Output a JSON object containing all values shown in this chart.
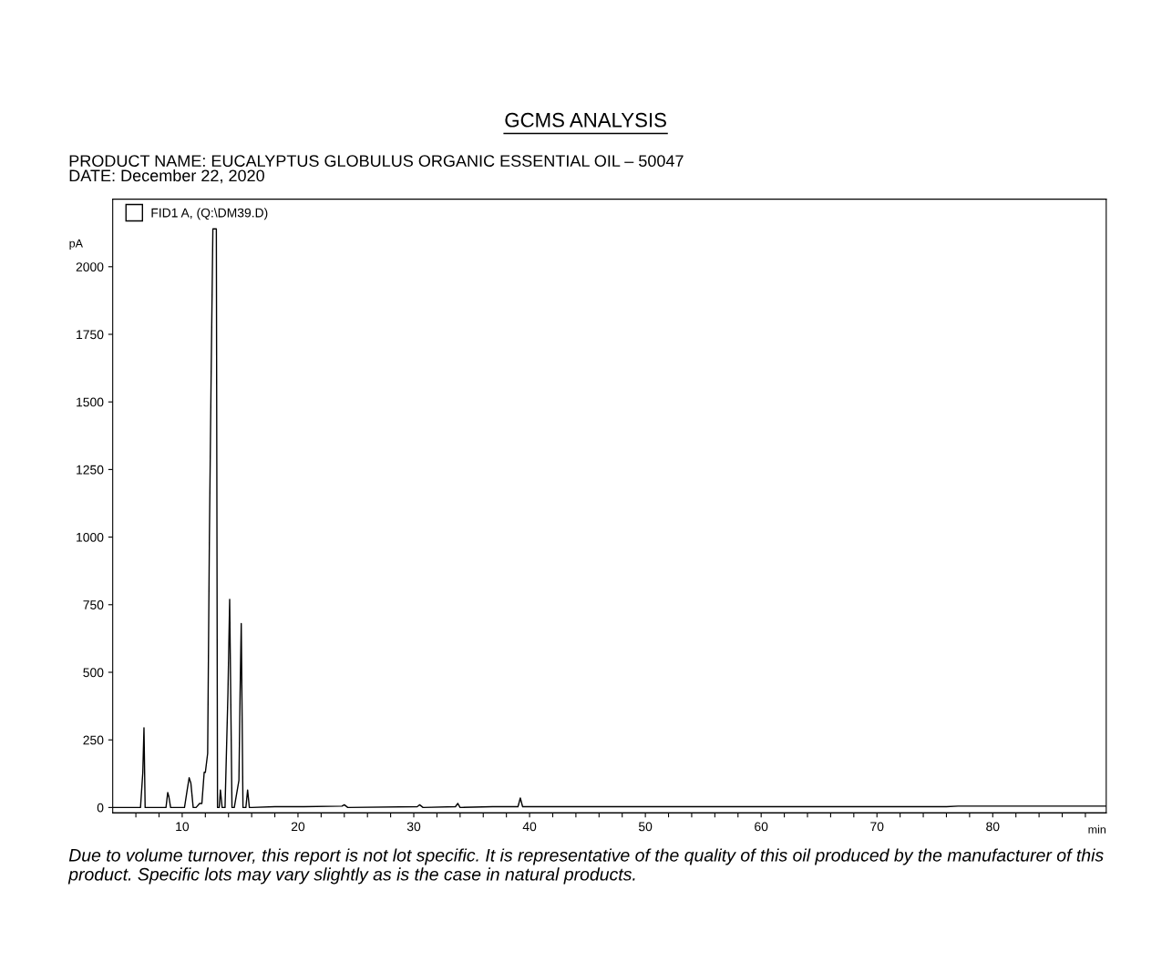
{
  "chart_data": {
    "type": "line",
    "title": "GCMS ANALYSIS",
    "subtitle": "PRODUCT NAME: EUCALYPTUS GLOBULUS ORGANIC ESSENTIAL OIL – 50047\nDATE: December 22, 2020",
    "xlabel": "min",
    "ylabel": "pA",
    "series": [
      {
        "name": "FID1 A, (Q:\\DM39.D)",
        "color": "#000000",
        "x": [
          4.0,
          6.4,
          6.6,
          6.7,
          6.8,
          7.0,
          8.6,
          8.75,
          8.85,
          9.0,
          10.2,
          10.45,
          10.6,
          10.75,
          10.95,
          11.2,
          11.5,
          11.7,
          11.9,
          12.0,
          12.2,
          12.35,
          12.5,
          12.65,
          12.8,
          12.95,
          13.05,
          13.2,
          13.3,
          13.45,
          13.7,
          13.95,
          14.1,
          14.3,
          14.5,
          14.9,
          15.0,
          15.1,
          15.25,
          15.5,
          15.65,
          15.8,
          16.0,
          18.0,
          20.5,
          23.8,
          24.0,
          24.3,
          30.3,
          30.5,
          30.8,
          33.6,
          33.8,
          34.0,
          36.8,
          39.0,
          39.2,
          39.4,
          45.0,
          76.0,
          77.0,
          89.8
        ],
        "values": [
          0,
          0,
          130,
          295,
          0,
          0,
          0,
          55,
          40,
          0,
          0,
          70,
          110,
          90,
          0,
          0,
          15,
          15,
          130,
          130,
          200,
          1000,
          1600,
          2140,
          2140,
          2140,
          0,
          0,
          65,
          0,
          0,
          420,
          770,
          0,
          0,
          100,
          420,
          680,
          0,
          0,
          65,
          0,
          0,
          3,
          3,
          5,
          10,
          0,
          3,
          10,
          0,
          3,
          15,
          0,
          3,
          3,
          35,
          3,
          3,
          3,
          5,
          5
        ]
      }
    ],
    "xlim": [
      4.0,
      89.8
    ],
    "ylim": [
      -20,
      2250
    ],
    "xticks": [
      {
        "value": 6,
        "label": null
      },
      {
        "value": 8,
        "label": null
      },
      10,
      {
        "value": 12,
        "label": null
      },
      {
        "value": 14,
        "label": null
      },
      {
        "value": 16,
        "label": null
      },
      {
        "value": 18,
        "label": null
      },
      20,
      {
        "value": 22,
        "label": null
      },
      {
        "value": 24,
        "label": null
      },
      {
        "value": 26,
        "label": null
      },
      {
        "value": 28,
        "label": null
      },
      30,
      {
        "value": 32,
        "label": null
      },
      {
        "value": 34,
        "label": null
      },
      {
        "value": 36,
        "label": null
      },
      {
        "value": 38,
        "label": null
      },
      40,
      {
        "value": 42,
        "label": null
      },
      {
        "value": 44,
        "label": null
      },
      {
        "value": 46,
        "label": null
      },
      {
        "value": 48,
        "label": null
      },
      50,
      {
        "value": 52,
        "label": null
      },
      {
        "value": 54,
        "label": null
      },
      {
        "value": 56,
        "label": null
      },
      {
        "value": 58,
        "label": null
      },
      60,
      {
        "value": 62,
        "label": null
      },
      {
        "value": 64,
        "label": null
      },
      {
        "value": 66,
        "label": null
      },
      {
        "value": 68,
        "label": null
      },
      70,
      {
        "value": 72,
        "label": null
      },
      {
        "value": 74,
        "label": null
      },
      {
        "value": 76,
        "label": null
      },
      {
        "value": 78,
        "label": null
      },
      80,
      {
        "value": 82,
        "label": null
      },
      {
        "value": 84,
        "label": null
      },
      {
        "value": 86,
        "label": null
      },
      {
        "value": 88,
        "label": null
      }
    ],
    "yticks": [
      0,
      250,
      500,
      750,
      1000,
      1250,
      1500,
      1750,
      2000
    ],
    "legend": "top left",
    "grid": false,
    "marker": "none",
    "line_style": "solid",
    "annotations": [
      "Due to volume turnover, this report is not lot specific. It is representative of the quality of this oil produced by the manufacturer of this product. Specific lots may vary slightly as is the case in natural products."
    ]
  }
}
